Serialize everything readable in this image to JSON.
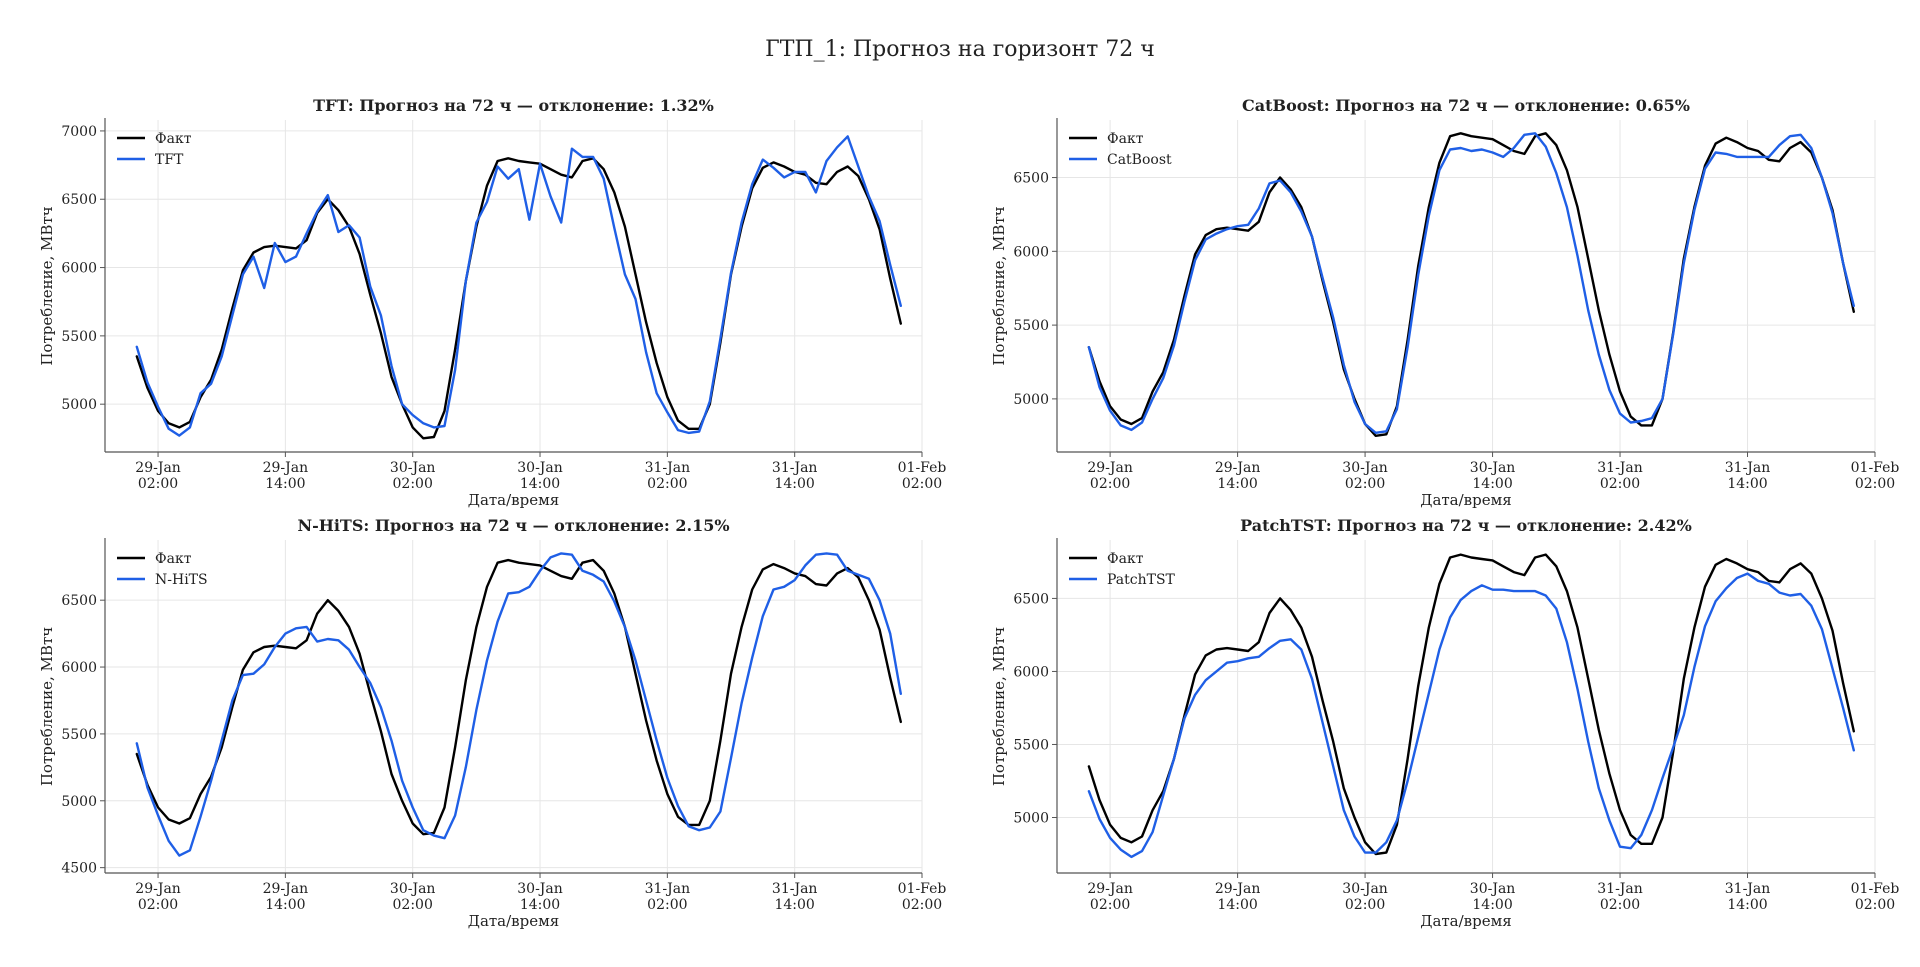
{
  "figure": {
    "suptitle": "ГТП_1: Прогноз на горизонт 72 ч"
  },
  "colors": {
    "actual": "#000000",
    "forecast": "#1f5fe6"
  },
  "chart_data": [
    {
      "type": "line",
      "title": "TFT: Прогноз на 72 ч — отклонение: 1.32%",
      "xlabel": "Дата/время",
      "ylabel": "Потребление, МВтч",
      "x_start": "2025-01-29T00:00",
      "x_step_hours": 1,
      "xlim": [
        "2025-01-28T21:00",
        "2025-02-01T02:00"
      ],
      "x_ticks": [
        [
          "29-Jan",
          "02:00"
        ],
        [
          "29-Jan",
          "14:00"
        ],
        [
          "30-Jan",
          "02:00"
        ],
        [
          "30-Jan",
          "14:00"
        ],
        [
          "31-Jan",
          "02:00"
        ],
        [
          "31-Jan",
          "14:00"
        ],
        [
          "01-Feb",
          "02:00"
        ]
      ],
      "ylim": [
        4650,
        7080
      ],
      "y_ticks": [
        5000,
        5500,
        6000,
        6500,
        7000
      ],
      "grid": true,
      "legend": "top-left",
      "series": [
        {
          "name": "Факт",
          "color": "#000000",
          "values": [
            5350,
            5120,
            4950,
            4860,
            4830,
            4870,
            5050,
            5180,
            5400,
            5700,
            5980,
            6110,
            6150,
            6160,
            6150,
            6140,
            6200,
            6400,
            6500,
            6420,
            6300,
            6100,
            5800,
            5520,
            5200,
            5000,
            4830,
            4750,
            4760,
            4950,
            5400,
            5900,
            6300,
            6600,
            6780,
            6800,
            6780,
            6770,
            6760,
            6720,
            6680,
            6660,
            6780,
            6800,
            6720,
            6550,
            6300,
            5950,
            5600,
            5300,
            5050,
            4880,
            4820,
            4820,
            5000,
            5450,
            5950,
            6300,
            6580,
            6730,
            6770,
            6740,
            6700,
            6680,
            6620,
            6610,
            6700,
            6740,
            6670,
            6500,
            6280,
            5920,
            5590
          ]
        },
        {
          "name": "TFT",
          "color": "#1f5fe6",
          "values": [
            5420,
            5160,
            4980,
            4820,
            4770,
            4830,
            5080,
            5150,
            5350,
            5650,
            5950,
            6080,
            5850,
            6180,
            6040,
            6080,
            6250,
            6410,
            6530,
            6260,
            6310,
            6220,
            5860,
            5650,
            5280,
            5000,
            4920,
            4860,
            4830,
            4840,
            5250,
            5900,
            6330,
            6480,
            6740,
            6650,
            6720,
            6350,
            6760,
            6520,
            6330,
            6870,
            6810,
            6810,
            6650,
            6290,
            5950,
            5770,
            5380,
            5080,
            4940,
            4810,
            4790,
            4800,
            5020,
            5480,
            5960,
            6330,
            6610,
            6790,
            6730,
            6660,
            6700,
            6700,
            6550,
            6780,
            6880,
            6960,
            6740,
            6520,
            6340,
            6020,
            5720
          ]
        }
      ]
    },
    {
      "type": "line",
      "title": "CatBoost: Прогноз на 72 ч — отклонение: 0.65%",
      "xlabel": "Дата/время",
      "ylabel": "Потребление, МВтч",
      "x_start": "2025-01-29T00:00",
      "x_step_hours": 1,
      "xlim": [
        "2025-01-28T21:00",
        "2025-02-01T02:00"
      ],
      "x_ticks": [
        [
          "29-Jan",
          "02:00"
        ],
        [
          "29-Jan",
          "14:00"
        ],
        [
          "30-Jan",
          "02:00"
        ],
        [
          "30-Jan",
          "14:00"
        ],
        [
          "31-Jan",
          "02:00"
        ],
        [
          "31-Jan",
          "14:00"
        ],
        [
          "01-Feb",
          "02:00"
        ]
      ],
      "ylim": [
        4640,
        6890
      ],
      "y_ticks": [
        5000,
        5500,
        6000,
        6500
      ],
      "grid": true,
      "legend": "top-left",
      "series": [
        {
          "name": "Факт",
          "color": "#000000",
          "values": [
            5350,
            5120,
            4950,
            4860,
            4830,
            4870,
            5050,
            5180,
            5400,
            5700,
            5980,
            6110,
            6150,
            6160,
            6150,
            6140,
            6200,
            6400,
            6500,
            6420,
            6300,
            6100,
            5800,
            5520,
            5200,
            5000,
            4830,
            4750,
            4760,
            4950,
            5400,
            5900,
            6300,
            6600,
            6780,
            6800,
            6780,
            6770,
            6760,
            6720,
            6680,
            6660,
            6780,
            6800,
            6720,
            6550,
            6300,
            5950,
            5600,
            5300,
            5050,
            4880,
            4820,
            4820,
            5000,
            5450,
            5950,
            6300,
            6580,
            6730,
            6770,
            6740,
            6700,
            6680,
            6620,
            6610,
            6700,
            6740,
            6670,
            6500,
            6280,
            5920,
            5590
          ]
        },
        {
          "name": "CatBoost",
          "color": "#1f5fe6",
          "values": [
            5350,
            5080,
            4920,
            4820,
            4790,
            4840,
            5000,
            5140,
            5360,
            5660,
            5940,
            6080,
            6120,
            6150,
            6170,
            6180,
            6290,
            6460,
            6480,
            6400,
            6270,
            6100,
            5820,
            5550,
            5230,
            4980,
            4830,
            4770,
            4780,
            4930,
            5350,
            5840,
            6240,
            6550,
            6690,
            6700,
            6680,
            6690,
            6670,
            6640,
            6700,
            6790,
            6800,
            6710,
            6530,
            6300,
            5970,
            5600,
            5300,
            5060,
            4900,
            4840,
            4850,
            4870,
            5000,
            5440,
            5920,
            6280,
            6560,
            6670,
            6660,
            6640,
            6640,
            6640,
            6640,
            6720,
            6780,
            6790,
            6700,
            6500,
            6260,
            5920,
            5630
          ]
        }
      ]
    },
    {
      "type": "line",
      "title": "N-HiTS: Прогноз на 72 ч — отклонение: 2.15%",
      "xlabel": "Дата/время",
      "ylabel": "Потребление, МВтч",
      "x_start": "2025-01-29T00:00",
      "x_step_hours": 1,
      "xlim": [
        "2025-01-28T21:00",
        "2025-02-01T02:00"
      ],
      "x_ticks": [
        [
          "29-Jan",
          "02:00"
        ],
        [
          "29-Jan",
          "14:00"
        ],
        [
          "30-Jan",
          "02:00"
        ],
        [
          "30-Jan",
          "14:00"
        ],
        [
          "31-Jan",
          "02:00"
        ],
        [
          "31-Jan",
          "14:00"
        ],
        [
          "01-Feb",
          "02:00"
        ]
      ],
      "ylim": [
        4460,
        6950
      ],
      "y_ticks": [
        4500,
        5000,
        5500,
        6000,
        6500
      ],
      "grid": true,
      "legend": "top-left",
      "series": [
        {
          "name": "Факт",
          "color": "#000000",
          "values": [
            5350,
            5120,
            4950,
            4860,
            4830,
            4870,
            5050,
            5180,
            5400,
            5700,
            5980,
            6110,
            6150,
            6160,
            6150,
            6140,
            6200,
            6400,
            6500,
            6420,
            6300,
            6100,
            5800,
            5520,
            5200,
            5000,
            4830,
            4750,
            4760,
            4950,
            5400,
            5900,
            6300,
            6600,
            6780,
            6800,
            6780,
            6770,
            6760,
            6720,
            6680,
            6660,
            6780,
            6800,
            6720,
            6550,
            6300,
            5950,
            5600,
            5300,
            5050,
            4880,
            4820,
            4820,
            5000,
            5450,
            5950,
            6300,
            6580,
            6730,
            6770,
            6740,
            6700,
            6680,
            6620,
            6610,
            6700,
            6740,
            6670,
            6500,
            6280,
            5920,
            5590
          ]
        },
        {
          "name": "N-HiTS",
          "color": "#1f5fe6",
          "values": [
            5430,
            5100,
            4890,
            4700,
            4590,
            4630,
            4880,
            5150,
            5450,
            5750,
            5940,
            5950,
            6020,
            6150,
            6250,
            6290,
            6300,
            6190,
            6210,
            6200,
            6130,
            6000,
            5880,
            5700,
            5450,
            5150,
            4950,
            4780,
            4740,
            4720,
            4890,
            5250,
            5680,
            6050,
            6340,
            6550,
            6560,
            6600,
            6720,
            6820,
            6850,
            6840,
            6720,
            6690,
            6640,
            6490,
            6300,
            6050,
            5750,
            5450,
            5170,
            4960,
            4810,
            4780,
            4800,
            4920,
            5320,
            5730,
            6070,
            6380,
            6580,
            6600,
            6650,
            6760,
            6840,
            6850,
            6840,
            6720,
            6690,
            6660,
            6500,
            6250,
            5800
          ]
        }
      ]
    },
    {
      "type": "line",
      "title": "PatchTST: Прогноз на 72 ч — отклонение: 2.42%",
      "xlabel": "Дата/время",
      "ylabel": "Потребление, МВтч",
      "x_start": "2025-01-29T00:00",
      "x_step_hours": 1,
      "xlim": [
        "2025-01-28T21:00",
        "2025-02-01T02:00"
      ],
      "x_ticks": [
        [
          "29-Jan",
          "02:00"
        ],
        [
          "29-Jan",
          "14:00"
        ],
        [
          "30-Jan",
          "02:00"
        ],
        [
          "30-Jan",
          "14:00"
        ],
        [
          "31-Jan",
          "02:00"
        ],
        [
          "31-Jan",
          "14:00"
        ],
        [
          "01-Feb",
          "02:00"
        ]
      ],
      "ylim": [
        4620,
        6900
      ],
      "y_ticks": [
        5000,
        5500,
        6000,
        6500
      ],
      "grid": true,
      "legend": "top-left",
      "series": [
        {
          "name": "Факт",
          "color": "#000000",
          "values": [
            5350,
            5120,
            4950,
            4860,
            4830,
            4870,
            5050,
            5180,
            5400,
            5700,
            5980,
            6110,
            6150,
            6160,
            6150,
            6140,
            6200,
            6400,
            6500,
            6420,
            6300,
            6100,
            5800,
            5520,
            5200,
            5000,
            4830,
            4750,
            4760,
            4950,
            5400,
            5900,
            6300,
            6600,
            6780,
            6800,
            6780,
            6770,
            6760,
            6720,
            6680,
            6660,
            6780,
            6800,
            6720,
            6550,
            6300,
            5950,
            5600,
            5300,
            5050,
            4880,
            4820,
            4820,
            5000,
            5450,
            5950,
            6300,
            6580,
            6730,
            6770,
            6740,
            6700,
            6680,
            6620,
            6610,
            6700,
            6740,
            6670,
            6500,
            6280,
            5920,
            5590
          ]
        },
        {
          "name": "PatchTST",
          "color": "#1f5fe6",
          "values": [
            5180,
            4990,
            4860,
            4780,
            4730,
            4770,
            4900,
            5150,
            5400,
            5680,
            5840,
            5940,
            6000,
            6060,
            6070,
            6090,
            6100,
            6160,
            6210,
            6220,
            6150,
            5950,
            5650,
            5350,
            5050,
            4870,
            4760,
            4760,
            4830,
            4980,
            5250,
            5550,
            5850,
            6150,
            6370,
            6490,
            6550,
            6590,
            6560,
            6560,
            6550,
            6550,
            6550,
            6520,
            6430,
            6200,
            5880,
            5520,
            5200,
            4980,
            4800,
            4790,
            4880,
            5050,
            5270,
            5480,
            5700,
            6030,
            6310,
            6480,
            6570,
            6640,
            6670,
            6620,
            6600,
            6540,
            6520,
            6530,
            6450,
            6290,
            6020,
            5750,
            5460
          ]
        }
      ]
    }
  ]
}
